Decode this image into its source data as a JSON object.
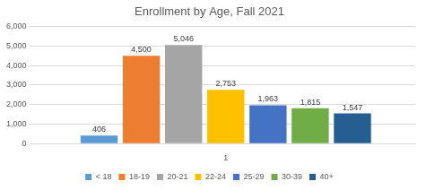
{
  "chart_data": {
    "type": "bar",
    "title": "Enrollment by Age, Fall 2021",
    "categories": [
      "1"
    ],
    "series": [
      {
        "name": "< 18",
        "color": "#5b9bd5",
        "values": [
          406
        ]
      },
      {
        "name": "18-19",
        "color": "#ed7d31",
        "values": [
          4500
        ],
        "value_labels": [
          "4,500"
        ]
      },
      {
        "name": "20-21",
        "color": "#a5a5a5",
        "values": [
          5046
        ],
        "value_labels": [
          "5,046"
        ]
      },
      {
        "name": "22-24",
        "color": "#ffc000",
        "values": [
          2753
        ],
        "value_labels": [
          "2,753"
        ]
      },
      {
        "name": "25-29",
        "color": "#4472c4",
        "values": [
          1963
        ],
        "value_labels": [
          "1,963"
        ]
      },
      {
        "name": "30-39",
        "color": "#70ad47",
        "values": [
          1815
        ],
        "value_labels": [
          "1,815"
        ]
      },
      {
        "name": "40+",
        "color": "#255e91",
        "values": [
          1547
        ],
        "value_labels": [
          "1,547"
        ]
      }
    ],
    "ylim": [
      0,
      6000
    ],
    "yticks": [
      0,
      {
        "value": 1000,
        "label": "1,000"
      },
      {
        "value": 2000,
        "label": "2,000"
      },
      {
        "value": 3000,
        "label": "3,000"
      },
      {
        "value": 4000,
        "label": "4,000"
      },
      {
        "value": 5000,
        "label": "5,000"
      },
      {
        "value": 6000,
        "label": "6,000"
      }
    ],
    "grid": true,
    "legend": "bottom",
    "data_labels": true
  }
}
